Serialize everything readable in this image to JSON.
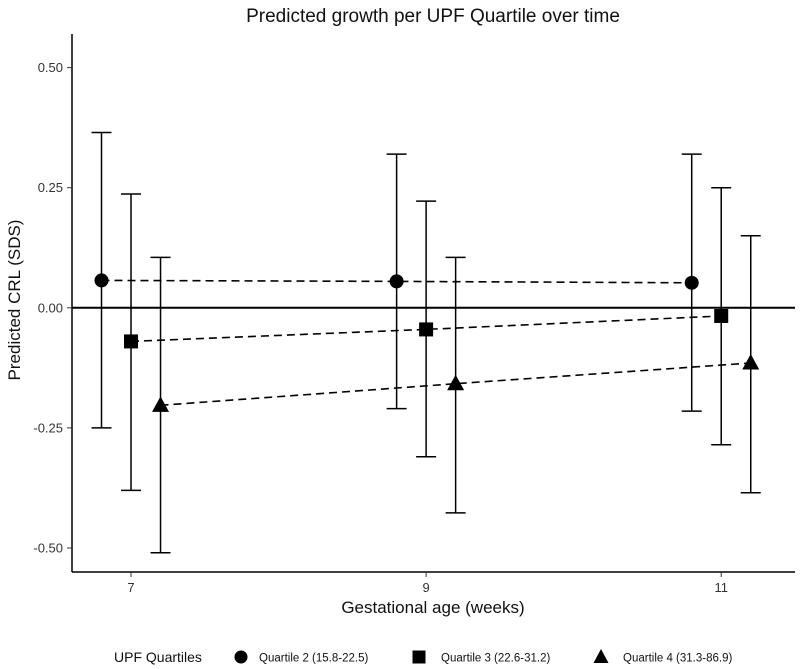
{
  "chart_data": {
    "type": "scatter",
    "title": "Predicted growth per UPF Quartile over time",
    "xlabel": "Gestational age (weeks)",
    "ylabel": "Predicted CRL (SDS)",
    "x_ticks": [
      "7",
      "9",
      "11"
    ],
    "y_ticks": [
      "-0.50",
      "-0.25",
      "0.00",
      "0.25",
      "0.50"
    ],
    "y_tick_values": [
      -0.5,
      -0.25,
      0,
      0.25,
      0.5
    ],
    "x_values": [
      7,
      9,
      11
    ],
    "xlim": [
      6.6,
      11.5
    ],
    "ylim": [
      -0.55,
      0.57
    ],
    "reference_line": 0,
    "legend": {
      "title": "UPF Quartiles",
      "position": "bottom"
    },
    "series": [
      {
        "name": "Quartile 2 (15.8-22.5)",
        "marker": "circle",
        "offset": -0.2,
        "values": [
          0.057,
          0.055,
          0.052
        ],
        "lower": [
          -0.25,
          -0.21,
          -0.215
        ],
        "upper": [
          0.365,
          0.32,
          0.32
        ]
      },
      {
        "name": "Quartile 3 (22.6-31.2)",
        "marker": "square",
        "offset": 0,
        "values": [
          -0.07,
          -0.045,
          -0.017
        ],
        "lower": [
          -0.38,
          -0.31,
          -0.285
        ],
        "upper": [
          0.237,
          0.222,
          0.25
        ]
      },
      {
        "name": "Quartile 4 (31.3-86.9)",
        "marker": "triangle",
        "offset": 0.2,
        "values": [
          -0.203,
          -0.158,
          -0.115
        ],
        "lower": [
          -0.51,
          -0.427,
          -0.385
        ],
        "upper": [
          0.105,
          0.105,
          0.15
        ]
      }
    ]
  }
}
